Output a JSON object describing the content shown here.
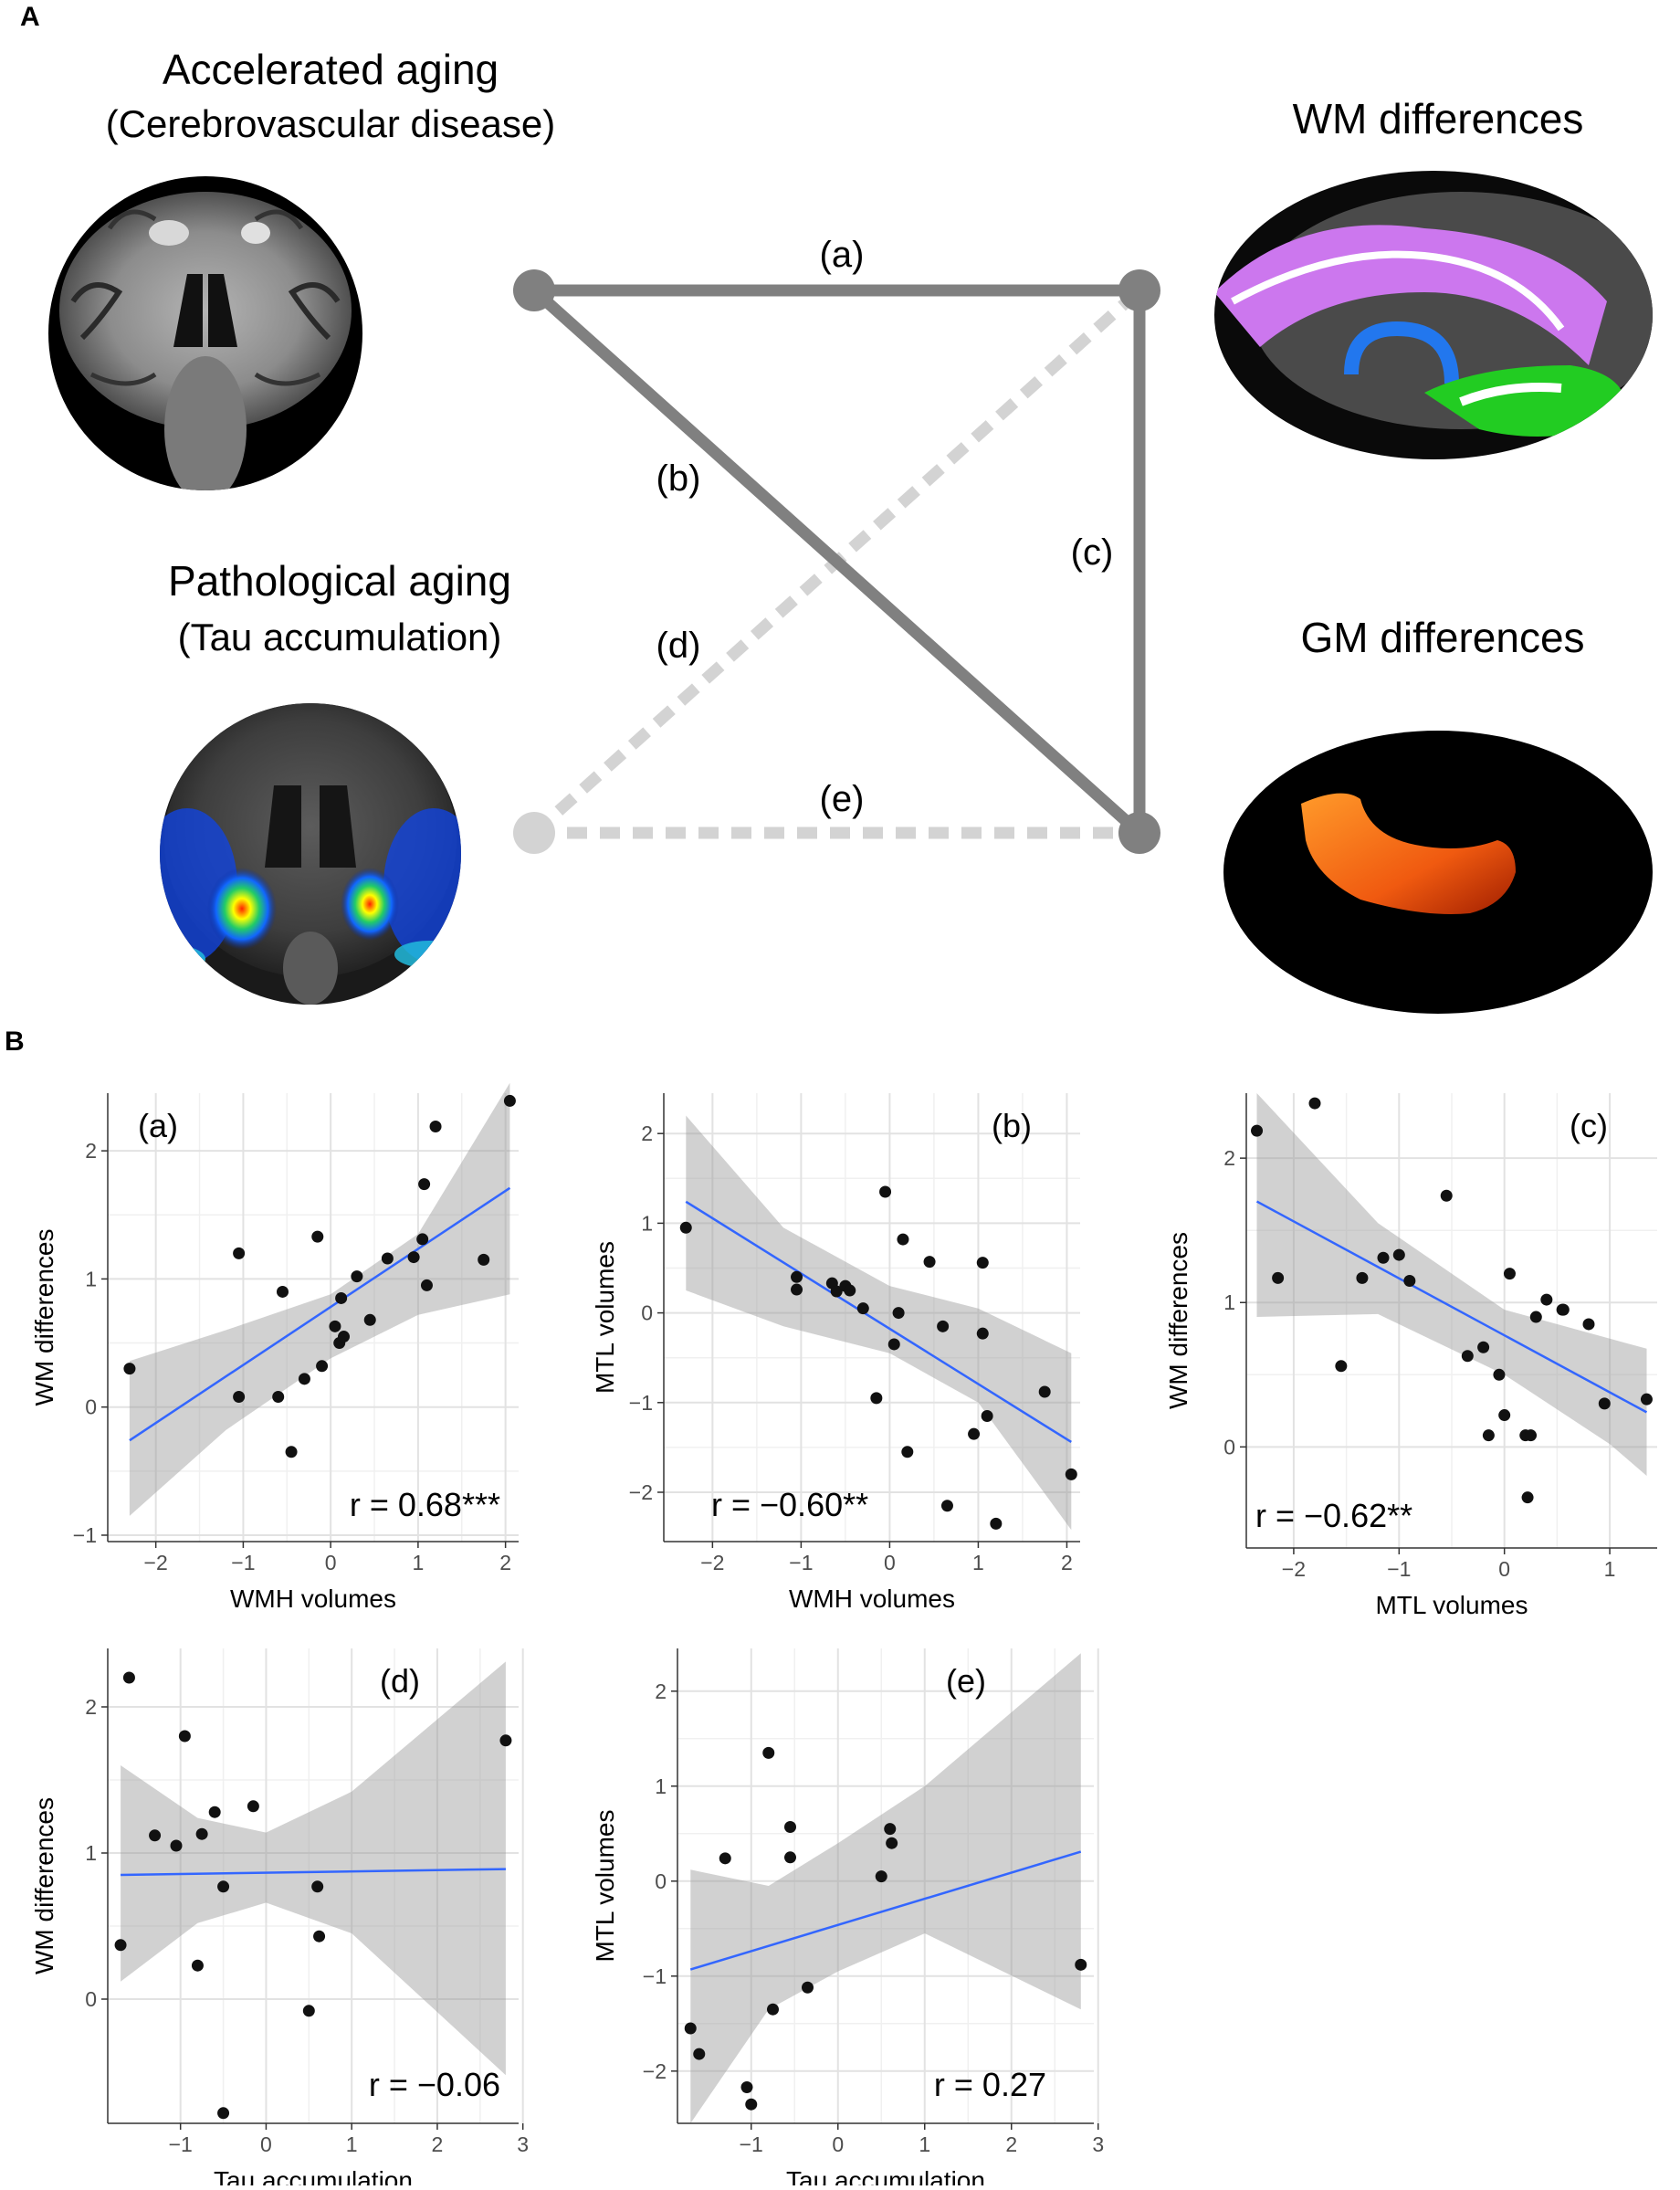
{
  "panel_a": {
    "label": "A",
    "accelerated_title": "Accelerated aging",
    "accelerated_subtitle": "(Cerebrovascular disease)",
    "pathological_title": "Pathological aging",
    "pathological_subtitle": "(Tau accumulation)",
    "wm_title": "WM differences",
    "gm_title": "GM differences",
    "edges": [
      {
        "id": "a",
        "label": "(a)",
        "style": "solid"
      },
      {
        "id": "b",
        "label": "(b)",
        "style": "solid"
      },
      {
        "id": "c",
        "label": "(c)",
        "style": "solid"
      },
      {
        "id": "d",
        "label": "(d)",
        "style": "dashed"
      },
      {
        "id": "e",
        "label": "(e)",
        "style": "dashed"
      }
    ],
    "colors": {
      "solid_edge": "#808080",
      "dashed_edge": "#d3d3d3"
    }
  },
  "panel_b": {
    "label": "B"
  },
  "chart_data": [
    {
      "type": "scatter",
      "tag": "(a)",
      "xlabel": "WMH volumes",
      "ylabel": "WM differences",
      "r_text": "r = 0.68***",
      "xlim": [
        -2.55,
        2.15
      ],
      "ylim": [
        -1.05,
        2.45
      ],
      "xticks": [
        -2,
        -1,
        0,
        1,
        2
      ],
      "yticks": [
        -1,
        0,
        1,
        2
      ],
      "x": [
        -2.3,
        -1.05,
        -1.05,
        -0.55,
        -0.6,
        -0.45,
        -0.3,
        -0.15,
        -0.1,
        0.05,
        0.1,
        0.15,
        0.12,
        0.3,
        0.45,
        0.65,
        0.95,
        1.05,
        1.07,
        1.1,
        1.2,
        1.75,
        2.05
      ],
      "y": [
        0.3,
        1.2,
        0.08,
        0.9,
        0.08,
        -0.35,
        0.22,
        1.33,
        0.32,
        0.63,
        0.5,
        0.55,
        0.85,
        1.02,
        0.68,
        1.16,
        1.17,
        1.31,
        1.74,
        0.95,
        2.19,
        1.15,
        2.39
      ],
      "fit": {
        "x": [
          -2.3,
          2.05
        ],
        "y": [
          -0.26,
          1.71
        ]
      },
      "band": {
        "x": [
          -2.3,
          -1.2,
          0.0,
          1.0,
          2.05
        ],
        "lower": [
          -0.85,
          -0.18,
          0.38,
          0.72,
          0.88
        ],
        "upper": [
          0.36,
          0.6,
          0.88,
          1.35,
          2.53
        ]
      }
    },
    {
      "type": "scatter",
      "tag": "(b)",
      "xlabel": "WMH volumes",
      "ylabel": "MTL volumes",
      "r_text": "r = −0.60**",
      "xlim": [
        -2.55,
        2.15
      ],
      "ylim": [
        -2.55,
        2.45
      ],
      "xticks": [
        -2,
        -1,
        0,
        1,
        2
      ],
      "yticks": [
        -2,
        -1,
        0,
        1,
        2
      ],
      "x": [
        -2.3,
        -1.05,
        -1.05,
        -0.65,
        -0.6,
        -0.5,
        -0.45,
        -0.3,
        -0.15,
        -0.05,
        0.05,
        0.1,
        0.15,
        0.2,
        0.45,
        0.6,
        0.65,
        0.95,
        1.05,
        1.05,
        1.1,
        1.2,
        1.75,
        2.05
      ],
      "y": [
        0.95,
        0.4,
        0.26,
        0.33,
        0.24,
        0.3,
        0.25,
        0.05,
        -0.95,
        1.35,
        -0.35,
        0.0,
        0.82,
        -1.55,
        0.57,
        -0.15,
        -2.15,
        -1.35,
        -0.23,
        0.56,
        -1.15,
        -2.35,
        -0.88,
        -1.8
      ],
      "fit": {
        "x": [
          -2.3,
          2.05
        ],
        "y": [
          1.24,
          -1.44
        ]
      },
      "band": {
        "x": [
          -2.3,
          -1.2,
          0.0,
          1.0,
          2.05
        ],
        "lower": [
          0.25,
          -0.15,
          -0.45,
          -1.0,
          -2.42
        ],
        "upper": [
          2.2,
          0.95,
          0.3,
          0.05,
          -0.45
        ]
      }
    },
    {
      "type": "scatter",
      "tag": "(c)",
      "xlabel": "MTL volumes",
      "ylabel": "WM differences",
      "r_text": "r = −0.62**",
      "xlim": [
        -2.45,
        1.45
      ],
      "ylim": [
        -0.7,
        2.45
      ],
      "xticks": [
        -2,
        -1,
        0,
        1
      ],
      "yticks": [
        0,
        1,
        2
      ],
      "x": [
        -2.35,
        -2.15,
        -1.8,
        -1.55,
        -1.35,
        -1.15,
        -1.0,
        -0.9,
        -0.55,
        -0.35,
        -0.2,
        -0.15,
        -0.05,
        0.0,
        0.05,
        0.2,
        0.22,
        0.25,
        0.3,
        0.4,
        0.55,
        0.56,
        0.8,
        0.95,
        1.35
      ],
      "y": [
        2.19,
        1.17,
        2.38,
        0.56,
        1.17,
        1.31,
        1.33,
        1.15,
        1.74,
        0.63,
        0.69,
        0.08,
        0.5,
        0.22,
        1.2,
        0.08,
        -0.35,
        0.08,
        0.9,
        1.02,
        0.95,
        0.95,
        0.85,
        0.3,
        0.33
      ],
      "fit": {
        "x": [
          -2.35,
          1.35
        ],
        "y": [
          1.7,
          0.24
        ]
      },
      "band": {
        "x": [
          -2.35,
          -1.2,
          0.0,
          1.0,
          1.35
        ],
        "lower": [
          0.9,
          0.92,
          0.5,
          0.02,
          -0.2
        ],
        "upper": [
          2.45,
          1.55,
          0.95,
          0.75,
          0.68
        ]
      }
    },
    {
      "type": "scatter",
      "tag": "(d)",
      "xlabel": "Tau accumulation",
      "ylabel": "WM differences",
      "r_text": "r = −0.06",
      "xlim": [
        -1.85,
        2.95
      ],
      "ylim": [
        -0.85,
        2.4
      ],
      "xticks": [
        -1,
        0,
        1,
        2,
        3
      ],
      "yticks": [
        0,
        1,
        2
      ],
      "x": [
        -1.7,
        -1.6,
        -1.3,
        -1.05,
        -0.95,
        -0.8,
        -0.75,
        -0.6,
        -0.5,
        -0.5,
        -0.15,
        0.5,
        0.6,
        0.62,
        2.8
      ],
      "y": [
        0.37,
        2.2,
        1.12,
        1.05,
        1.8,
        0.23,
        1.13,
        1.28,
        0.77,
        -0.78,
        1.32,
        -0.08,
        0.77,
        0.43,
        1.77
      ],
      "fit": {
        "x": [
          -1.7,
          2.8
        ],
        "y": [
          0.85,
          0.89
        ]
      },
      "band": {
        "x": [
          -1.7,
          -0.8,
          0.0,
          1.0,
          2.8
        ],
        "lower": [
          0.12,
          0.52,
          0.66,
          0.45,
          -0.52
        ],
        "upper": [
          1.6,
          1.24,
          1.14,
          1.42,
          2.31
        ]
      }
    },
    {
      "type": "scatter",
      "tag": "(e)",
      "xlabel": "Tau accumulation",
      "ylabel": "MTL volumes",
      "r_text": "r = 0.27",
      "xlim": [
        -1.85,
        2.95
      ],
      "ylim": [
        -2.55,
        2.45
      ],
      "xticks": [
        -1,
        0,
        1,
        2,
        3
      ],
      "yticks": [
        -2,
        -1,
        0,
        1,
        2
      ],
      "x": [
        -1.7,
        -1.6,
        -1.3,
        -1.05,
        -1.0,
        -0.8,
        -0.75,
        -0.55,
        -0.55,
        -0.35,
        0.5,
        0.6,
        0.62,
        2.8
      ],
      "y": [
        -1.55,
        -1.82,
        0.24,
        -2.17,
        -2.35,
        1.35,
        -1.35,
        0.57,
        0.25,
        -1.12,
        0.05,
        0.55,
        0.4,
        -0.88
      ],
      "fit": {
        "x": [
          -1.7,
          2.8
        ],
        "y": [
          -0.93,
          0.31
        ]
      },
      "band": {
        "x": [
          -1.7,
          -0.8,
          0.0,
          1.0,
          2.8
        ],
        "lower": [
          -2.55,
          -1.35,
          -0.95,
          -0.55,
          -1.35
        ],
        "upper": [
          0.12,
          -0.05,
          0.4,
          1.0,
          2.4
        ]
      }
    }
  ]
}
